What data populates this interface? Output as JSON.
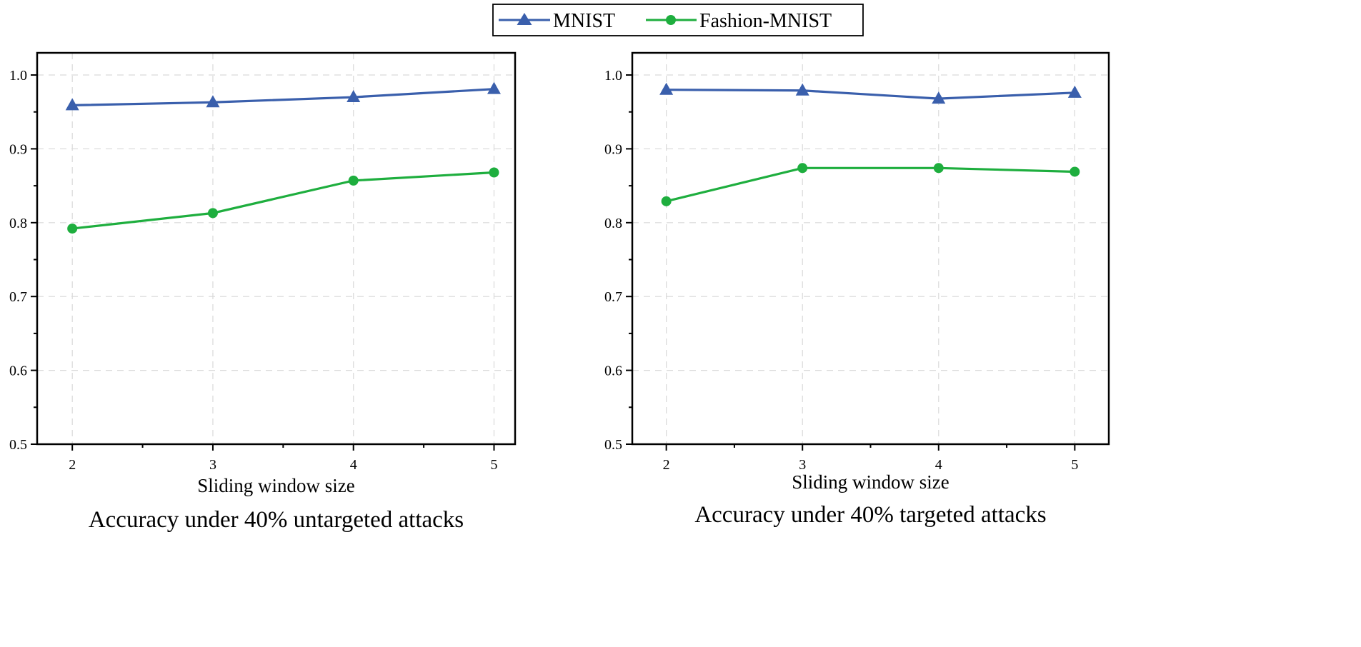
{
  "legend": {
    "items": [
      {
        "label": "MNIST",
        "color": "#3a5fac",
        "marker": "triangle-marker-icon"
      },
      {
        "label": "Fashion-MNIST",
        "color": "#1eae3e",
        "marker": "circle-marker-icon"
      }
    ]
  },
  "chart_data": [
    {
      "type": "line",
      "title": "",
      "caption": "Accuracy under 40% untargeted attacks",
      "xlabel": "Sliding window size",
      "ylabel": "",
      "x": [
        2,
        3,
        4,
        5
      ],
      "x_tick_labels": [
        "2",
        "3",
        "4",
        "5"
      ],
      "xlim": [
        1.75,
        5.15
      ],
      "ylim": [
        0.5,
        1.03
      ],
      "y_ticks": [
        0.5,
        0.6,
        0.7,
        0.8,
        0.9,
        1.0
      ],
      "y_tick_labels": [
        "0.5",
        "0.6",
        "0.7",
        "0.8",
        "0.9",
        "1.0"
      ],
      "grid": true,
      "legend_position": "top-center",
      "series": [
        {
          "name": "MNIST",
          "values": [
            0.959,
            0.963,
            0.97,
            0.981
          ]
        },
        {
          "name": "Fashion-MNIST",
          "values": [
            0.792,
            0.813,
            0.857,
            0.868
          ]
        }
      ]
    },
    {
      "type": "line",
      "title": "",
      "caption": "Accuracy under 40% targeted attacks",
      "xlabel": "Sliding window size",
      "ylabel": "",
      "x": [
        2,
        3,
        4,
        5
      ],
      "x_tick_labels": [
        "2",
        "3",
        "4",
        "5"
      ],
      "xlim": [
        1.75,
        5.25
      ],
      "ylim": [
        0.5,
        1.03
      ],
      "y_ticks": [
        0.5,
        0.6,
        0.7,
        0.8,
        0.9,
        1.0
      ],
      "y_tick_labels": [
        "0.5",
        "0.6",
        "0.7",
        "0.8",
        "0.9",
        "1.0"
      ],
      "grid": true,
      "legend_position": "top-center",
      "series": [
        {
          "name": "MNIST",
          "values": [
            0.98,
            0.979,
            0.968,
            0.976
          ]
        },
        {
          "name": "Fashion-MNIST",
          "values": [
            0.829,
            0.874,
            0.874,
            0.869
          ]
        }
      ]
    }
  ]
}
